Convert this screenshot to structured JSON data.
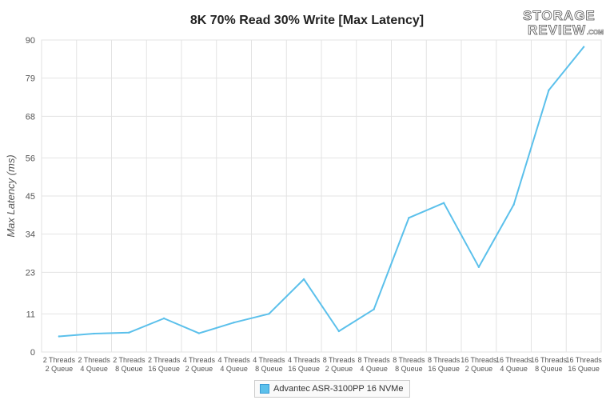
{
  "chart_data": {
    "type": "line",
    "title": "8K 70% Read 30% Write [Max Latency]",
    "xlabel": "",
    "ylabel": "Max Latency (ms)",
    "ylim": [
      0,
      90
    ],
    "yticks": [
      "0",
      "11",
      "23",
      "34",
      "45",
      "56",
      "68",
      "79",
      "90"
    ],
    "grid": true,
    "legend_position": "bottom",
    "categories": [
      [
        "2 Threads",
        "2 Queue"
      ],
      [
        "2 Threads",
        "4 Queue"
      ],
      [
        "2 Threads",
        "8 Queue"
      ],
      [
        "2 Threads",
        "16 Queue"
      ],
      [
        "4 Threads",
        "2 Queue"
      ],
      [
        "4 Threads",
        "4 Queue"
      ],
      [
        "4 Threads",
        "8 Queue"
      ],
      [
        "4 Threads",
        "16 Queue"
      ],
      [
        "8 Threads",
        "2 Queue"
      ],
      [
        "8 Threads",
        "4 Queue"
      ],
      [
        "8 Threads",
        "8 Queue"
      ],
      [
        "8 Threads",
        "16 Queue"
      ],
      [
        "16 Threads",
        "2 Queue"
      ],
      [
        "16 Threads",
        "4 Queue"
      ],
      [
        "16 Threads",
        "8 Queue"
      ],
      [
        "16 Threads",
        "16 Queue"
      ]
    ],
    "series": [
      {
        "name": "Advantec ASR-3100PP 16 NVMe",
        "color": "#5bc0eb",
        "values": [
          4.5,
          5.3,
          5.6,
          9.7,
          5.4,
          8.5,
          11.0,
          21.0,
          6.0,
          12.3,
          38.7,
          43.0,
          24.5,
          42.5,
          75.5,
          88.0
        ]
      }
    ]
  },
  "branding": {
    "logo_line1": "STORAGE",
    "logo_line2": "REVIEW",
    "logo_suffix": ".COM"
  }
}
